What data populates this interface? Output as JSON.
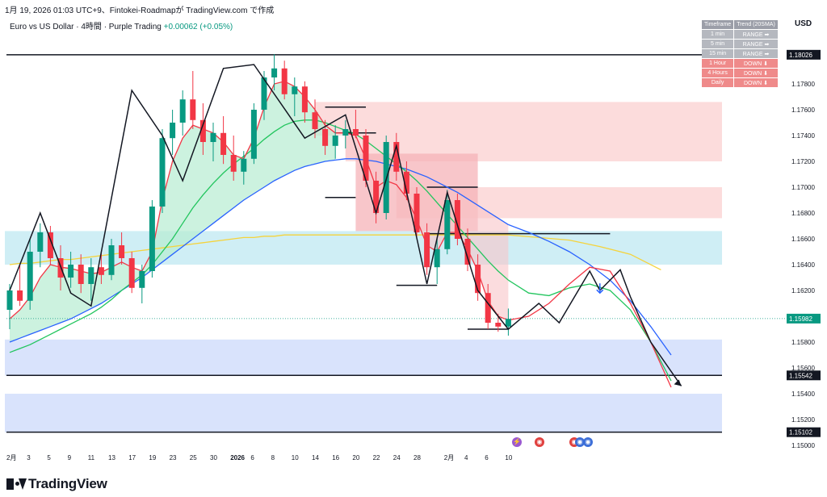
{
  "header": {
    "topline": "1月 19, 2026 01:03 UTC+9、Fintokei-Roadmapが TradingView.com で作成",
    "symbol": "Euro vs US Dollar · 4時間 · Purple Trading",
    "change": "+0.00062 (+0.05%)",
    "currency": "USD"
  },
  "trend_table": {
    "headers": [
      "Timeframe",
      "Trend (20SMA)"
    ],
    "rows": [
      {
        "tf": "1 min",
        "trend": "RANGE ➡",
        "state": "range"
      },
      {
        "tf": "5 min",
        "trend": "RANGE ➡",
        "state": "range"
      },
      {
        "tf": "15 min",
        "trend": "RANGE ➡",
        "state": "range"
      },
      {
        "tf": "1 Hour",
        "trend": "DOWN ⬇",
        "state": "down"
      },
      {
        "tf": "4 Hours",
        "trend": "DOWN ⬇",
        "state": "down"
      },
      {
        "tf": "Daily",
        "trend": "DOWN ⬇",
        "state": "down"
      }
    ]
  },
  "brand": "TradingView",
  "colors": {
    "up": "#089981",
    "down": "#f23645",
    "ma_fast": "#f23645",
    "ma_mid": "#22c55e",
    "ma_slow": "#2962ff",
    "ma_long": "#f5d33b",
    "resist_zone": "#fcdcdc",
    "cyan_zone": "#cfeef5",
    "support_zone": "#d9e3fc"
  },
  "chart_data": {
    "type": "candlestick",
    "y_axis": {
      "ylim": [
        1.15,
        1.182
      ],
      "ticks": [
        "1.15000",
        "1.15200",
        "1.15400",
        "1.15600",
        "1.15800",
        "1.16000",
        "1.16200",
        "1.16400",
        "1.16600",
        "1.16800",
        "1.17000",
        "1.17200",
        "1.17400",
        "1.17600",
        "1.17800"
      ],
      "price_labels": [
        {
          "value": 1.18026,
          "text": "1.18026",
          "style": "line"
        },
        {
          "value": 1.15982,
          "text": "1.15982",
          "style": "current"
        },
        {
          "value": 1.15542,
          "text": "1.15542",
          "style": "line"
        },
        {
          "value": 1.15102,
          "text": "1.15102",
          "style": "line"
        }
      ]
    },
    "x_axis": {
      "labels": [
        {
          "t": 0,
          "text": "2月"
        },
        {
          "t": 2,
          "text": "3"
        },
        {
          "t": 4,
          "text": "5"
        },
        {
          "t": 6,
          "text": "9"
        },
        {
          "t": 8,
          "text": "11"
        },
        {
          "t": 10,
          "text": "13"
        },
        {
          "t": 12,
          "text": "17"
        },
        {
          "t": 14,
          "text": "19"
        },
        {
          "t": 16,
          "text": "23"
        },
        {
          "t": 18,
          "text": "25"
        },
        {
          "t": 20,
          "text": "30"
        },
        {
          "t": 22,
          "text": "2026"
        },
        {
          "t": 24,
          "text": "6"
        },
        {
          "t": 26,
          "text": "8"
        },
        {
          "t": 28,
          "text": "10"
        },
        {
          "t": 30,
          "text": "14"
        },
        {
          "t": 32,
          "text": "16"
        },
        {
          "t": 34,
          "text": "20"
        },
        {
          "t": 36,
          "text": "22"
        },
        {
          "t": 38,
          "text": "24"
        },
        {
          "t": 40,
          "text": "28"
        },
        {
          "t": 43,
          "text": "2月"
        },
        {
          "t": 45,
          "text": "4"
        },
        {
          "t": 47,
          "text": "6"
        },
        {
          "t": 49,
          "text": "10"
        }
      ]
    },
    "candles": [
      [
        1.1605,
        1.1625,
        1.159,
        1.162
      ],
      [
        1.162,
        1.164,
        1.1608,
        1.1612
      ],
      [
        1.1612,
        1.166,
        1.1605,
        1.165
      ],
      [
        1.165,
        1.1672,
        1.1638,
        1.1665
      ],
      [
        1.1665,
        1.167,
        1.164,
        1.1645
      ],
      [
        1.1645,
        1.1655,
        1.162,
        1.163
      ],
      [
        1.163,
        1.165,
        1.1622,
        1.164
      ],
      [
        1.164,
        1.1648,
        1.1618,
        1.1625
      ],
      [
        1.1625,
        1.1645,
        1.1612,
        1.1638
      ],
      [
        1.1638,
        1.165,
        1.1625,
        1.1632
      ],
      [
        1.1632,
        1.166,
        1.1628,
        1.1655
      ],
      [
        1.1655,
        1.1665,
        1.164,
        1.1645
      ],
      [
        1.1645,
        1.165,
        1.1618,
        1.1622
      ],
      [
        1.1622,
        1.164,
        1.161,
        1.1635
      ],
      [
        1.1635,
        1.169,
        1.163,
        1.1685
      ],
      [
        1.1685,
        1.1745,
        1.168,
        1.1738
      ],
      [
        1.1738,
        1.176,
        1.1725,
        1.175
      ],
      [
        1.175,
        1.1775,
        1.174,
        1.1768
      ],
      [
        1.1768,
        1.179,
        1.1745,
        1.1752
      ],
      [
        1.1752,
        1.1765,
        1.1725,
        1.1735
      ],
      [
        1.1735,
        1.175,
        1.172,
        1.1742
      ],
      [
        1.1742,
        1.1755,
        1.1718,
        1.1725
      ],
      [
        1.1725,
        1.174,
        1.1705,
        1.1712
      ],
      [
        1.1712,
        1.1728,
        1.1702,
        1.1722
      ],
      [
        1.1722,
        1.1765,
        1.1718,
        1.176
      ],
      [
        1.176,
        1.179,
        1.1752,
        1.1785
      ],
      [
        1.1785,
        1.1803,
        1.1775,
        1.1792
      ],
      [
        1.1792,
        1.1798,
        1.1768,
        1.1772
      ],
      [
        1.1772,
        1.1785,
        1.1755,
        1.1778
      ],
      [
        1.1778,
        1.1782,
        1.175,
        1.1758
      ],
      [
        1.1758,
        1.1768,
        1.1738,
        1.1745
      ],
      [
        1.1745,
        1.1752,
        1.1725,
        1.1732
      ],
      [
        1.1732,
        1.1748,
        1.1722,
        1.174
      ],
      [
        1.174,
        1.1752,
        1.173,
        1.1745
      ],
      [
        1.1745,
        1.176,
        1.1738,
        1.174
      ],
      [
        1.174,
        1.1745,
        1.17,
        1.1705
      ],
      [
        1.1705,
        1.1712,
        1.1672,
        1.168
      ],
      [
        1.168,
        1.174,
        1.1675,
        1.1735
      ],
      [
        1.1735,
        1.1742,
        1.1705,
        1.1712
      ],
      [
        1.1712,
        1.172,
        1.169,
        1.1695
      ],
      [
        1.1695,
        1.17,
        1.166,
        1.1665
      ],
      [
        1.1665,
        1.1672,
        1.1632,
        1.1638
      ],
      [
        1.1638,
        1.166,
        1.1625,
        1.1652
      ],
      [
        1.1652,
        1.1698,
        1.1648,
        1.169
      ],
      [
        1.169,
        1.1695,
        1.1655,
        1.166
      ],
      [
        1.166,
        1.1668,
        1.1635,
        1.164
      ],
      [
        1.164,
        1.1648,
        1.1612,
        1.1618
      ],
      [
        1.1618,
        1.1625,
        1.159,
        1.1595
      ],
      [
        1.1595,
        1.1602,
        1.1588,
        1.1592
      ],
      [
        1.1592,
        1.1606,
        1.1585,
        1.1598
      ]
    ],
    "ma_fast": [
      1.1598,
      1.1605,
      1.1615,
      1.163,
      1.164,
      1.1638,
      1.1637,
      1.1635,
      1.1633,
      1.1634,
      1.1638,
      1.1642,
      1.1638,
      1.1635,
      1.165,
      1.169,
      1.172,
      1.1738,
      1.1748,
      1.1745,
      1.1742,
      1.1735,
      1.1725,
      1.1722,
      1.1738,
      1.1762,
      1.178,
      1.1782,
      1.1778,
      1.177,
      1.176,
      1.1748,
      1.1742,
      1.1742,
      1.174,
      1.1722,
      1.17,
      1.1705,
      1.1702,
      1.1692,
      1.1675,
      1.1655,
      1.165,
      1.1665,
      1.1665,
      1.1652,
      1.1635,
      1.1612,
      1.16,
      1.1597
    ],
    "ma_mid": [
      1.1572,
      1.1575,
      1.1578,
      1.1582,
      1.1586,
      1.159,
      1.1594,
      1.1598,
      1.1602,
      1.1607,
      1.1613,
      1.162,
      1.1626,
      1.1632,
      1.164,
      1.165,
      1.166,
      1.1672,
      1.1684,
      1.1694,
      1.1703,
      1.1711,
      1.1718,
      1.1724,
      1.173,
      1.1737,
      1.1743,
      1.1748,
      1.1751,
      1.1752,
      1.1752,
      1.175,
      1.1747,
      1.1744,
      1.1741,
      1.1736,
      1.173,
      1.1724,
      1.1718,
      1.1712,
      1.1705,
      1.1697,
      1.1688,
      1.1679,
      1.167,
      1.1661,
      1.1652,
      1.1643,
      1.1635,
      1.1628
    ],
    "ma_slow": [
      1.158,
      1.1583,
      1.1586,
      1.1589,
      1.1592,
      1.1595,
      1.1598,
      1.1602,
      1.1606,
      1.161,
      1.1615,
      1.162,
      1.1625,
      1.163,
      1.1636,
      1.1642,
      1.1648,
      1.1654,
      1.166,
      1.1666,
      1.1672,
      1.1678,
      1.1684,
      1.169,
      1.1695,
      1.17,
      1.1705,
      1.1709,
      1.1713,
      1.1716,
      1.1718,
      1.172,
      1.1721,
      1.1722,
      1.1722,
      1.1721,
      1.172,
      1.1718,
      1.1716,
      1.1714,
      1.1711,
      1.1708,
      1.1704,
      1.17,
      1.1696,
      1.1691,
      1.1686,
      1.1681,
      1.1676,
      1.1671
    ],
    "ma_long": [
      1.164,
      1.1641,
      1.1641,
      1.1642,
      1.1643,
      1.1644,
      1.1644,
      1.1645,
      1.1646,
      1.1647,
      1.1648,
      1.1649,
      1.165,
      1.1651,
      1.1652,
      1.1653,
      1.1654,
      1.1655,
      1.1656,
      1.1657,
      1.1658,
      1.1659,
      1.166,
      1.1661,
      1.1661,
      1.1662,
      1.1662,
      1.1663,
      1.1663,
      1.1663,
      1.1663,
      1.1663,
      1.1663,
      1.1663,
      1.1663,
      1.1663,
      1.1663,
      1.1663,
      1.1663,
      1.1663,
      1.1663,
      1.1663,
      1.1663,
      1.1663,
      1.1663,
      1.1663,
      1.1663,
      1.1663,
      1.1663,
      1.1663
    ],
    "projection": {
      "ma_fast": [
        [
          49,
          1.1597
        ],
        [
          51,
          1.16
        ],
        [
          53,
          1.161
        ],
        [
          55,
          1.1625
        ],
        [
          57,
          1.1638
        ],
        [
          59,
          1.1635
        ],
        [
          61,
          1.161
        ],
        [
          63,
          1.158
        ],
        [
          65,
          1.1545
        ]
      ],
      "ma_mid": [
        [
          49,
          1.1628
        ],
        [
          51,
          1.1618
        ],
        [
          53,
          1.1616
        ],
        [
          55,
          1.1622
        ],
        [
          57,
          1.1625
        ],
        [
          59,
          1.162
        ],
        [
          61,
          1.1605
        ],
        [
          63,
          1.158
        ],
        [
          65,
          1.155
        ]
      ],
      "ma_slow": [
        [
          49,
          1.1671
        ],
        [
          51,
          1.1665
        ],
        [
          53,
          1.1658
        ],
        [
          55,
          1.165
        ],
        [
          57,
          1.164
        ],
        [
          59,
          1.1628
        ],
        [
          61,
          1.1612
        ],
        [
          63,
          1.1592
        ],
        [
          65,
          1.157
        ]
      ],
      "ma_long": [
        [
          49,
          1.1663
        ],
        [
          52,
          1.1661
        ],
        [
          55,
          1.1659
        ],
        [
          58,
          1.1654
        ],
        [
          61,
          1.1648
        ],
        [
          64,
          1.1636
        ]
      ]
    },
    "zigzag": [
      [
        0,
        1.162
      ],
      [
        3,
        1.168
      ],
      [
        6,
        1.1618
      ],
      [
        8,
        1.1608
      ],
      [
        12,
        1.1775
      ],
      [
        15,
        1.174
      ],
      [
        17,
        1.1705
      ],
      [
        21,
        1.1792
      ],
      [
        24,
        1.1795
      ],
      [
        29,
        1.1738
      ],
      [
        33,
        1.1756
      ],
      [
        36,
        1.168
      ],
      [
        38,
        1.1732
      ],
      [
        41,
        1.1625
      ],
      [
        43,
        1.1696
      ],
      [
        46,
        1.162
      ],
      [
        49,
        1.159
      ],
      [
        52,
        1.161
      ],
      [
        54,
        1.1595
      ],
      [
        57,
        1.1635
      ],
      [
        58,
        1.162
      ],
      [
        60,
        1.1636
      ],
      [
        61,
        1.1615
      ],
      [
        63,
        1.158
      ],
      [
        66,
        1.1546
      ]
    ],
    "horizontal_levels": [
      {
        "value": 1.18026,
        "from": 0,
        "to": 70,
        "color": "#131722"
      },
      {
        "value": 1.15542,
        "from": 0,
        "to": 70,
        "color": "#131722"
      },
      {
        "value": 1.15102,
        "from": 0,
        "to": 70,
        "color": "#131722"
      },
      {
        "value": 1.1664,
        "from": 41,
        "to": 59,
        "color": "#131722"
      },
      {
        "value": 1.1762,
        "from": 31,
        "to": 35,
        "color": "#131722"
      },
      {
        "value": 1.1742,
        "from": 32,
        "to": 36,
        "color": "#131722"
      },
      {
        "value": 1.1692,
        "from": 31,
        "to": 34,
        "color": "#131722"
      },
      {
        "value": 1.17,
        "from": 41,
        "to": 46,
        "color": "#131722"
      },
      {
        "value": 1.1624,
        "from": 38,
        "to": 42,
        "color": "#131722"
      },
      {
        "value": 1.159,
        "from": 45,
        "to": 49,
        "color": "#131722"
      }
    ],
    "zones": [
      {
        "name": "resistance-upper",
        "from": 30,
        "to": 70,
        "ymin": 1.174,
        "ymax": 1.1766,
        "color": "#fcdcdc"
      },
      {
        "name": "resistance-mid",
        "from": 33,
        "to": 70,
        "ymin": 1.172,
        "ymax": 1.1743,
        "color": "#fcdcdc"
      },
      {
        "name": "resistance-low",
        "from": 38,
        "to": 70,
        "ymin": 1.1676,
        "ymax": 1.17,
        "color": "#fcdcdc"
      },
      {
        "name": "box",
        "from": 34,
        "to": 46,
        "ymin": 1.1664,
        "ymax": 1.1726,
        "color": "#f6b3b8"
      },
      {
        "name": "cyan-zone",
        "from": 0,
        "to": 70,
        "ymin": 1.164,
        "ymax": 1.1666,
        "color": "#cfeef5"
      },
      {
        "name": "support-upper",
        "from": 0,
        "to": 70,
        "ymin": 1.1554,
        "ymax": 1.1582,
        "color": "#d9e3fc"
      },
      {
        "name": "support-lower",
        "from": 0,
        "to": 70,
        "ymin": 1.151,
        "ymax": 1.154,
        "color": "#d9e3fc"
      }
    ]
  }
}
